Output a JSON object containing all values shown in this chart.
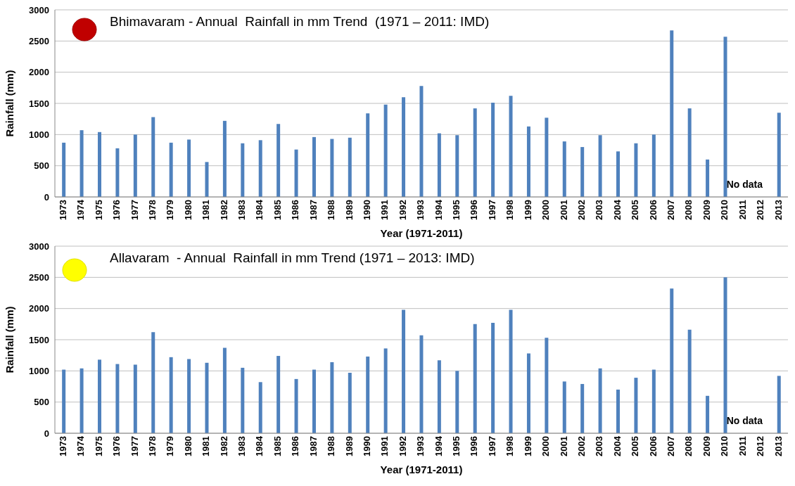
{
  "chart_data": [
    {
      "type": "bar",
      "title": "Bhimavaram - Annual  Rainfall in mm Trend  (1971 – 2011: IMD)",
      "xlabel": "Year (1971-2011)",
      "ylabel": "Rainfall (mm)",
      "categories": [
        "1973",
        "1974",
        "1975",
        "1976",
        "1977",
        "1978",
        "1979",
        "1980",
        "1981",
        "1982",
        "1983",
        "1984",
        "1985",
        "1986",
        "1987",
        "1988",
        "1989",
        "1990",
        "1991",
        "1992",
        "1993",
        "1994",
        "1995",
        "1996",
        "1997",
        "1998",
        "1999",
        "2000",
        "2001",
        "2002",
        "2003",
        "2004",
        "2005",
        "2006",
        "2007",
        "2008",
        "2009",
        "2010",
        "2011",
        "2012",
        "2013"
      ],
      "values": [
        870,
        1070,
        1040,
        780,
        1000,
        1280,
        870,
        920,
        560,
        1220,
        860,
        910,
        1170,
        760,
        960,
        930,
        950,
        1340,
        1480,
        1600,
        1780,
        1020,
        990,
        1420,
        1510,
        1620,
        1130,
        1270,
        890,
        800,
        990,
        730,
        860,
        1000,
        2670,
        1420,
        600,
        2570,
        null,
        null,
        1350
      ],
      "color": "#4f81bd",
      "ylim": [
        0,
        3000
      ],
      "yticks": [
        0,
        500,
        1000,
        1500,
        2000,
        2500,
        3000
      ],
      "grid": "y",
      "annotations": [
        "No data"
      ]
    },
    {
      "type": "bar",
      "title": "Allavaram  - Annual  Rainfall in mm Trend (1971 – 2013: IMD)",
      "xlabel": "Year (1971-2011)",
      "ylabel": "Rainfall (mm)",
      "categories": [
        "1973",
        "1974",
        "1975",
        "1976",
        "1977",
        "1978",
        "1979",
        "1980",
        "1981",
        "1982",
        "1983",
        "1984",
        "1985",
        "1986",
        "1987",
        "1988",
        "1989",
        "1990",
        "1991",
        "1992",
        "1993",
        "1994",
        "1995",
        "1996",
        "1997",
        "1998",
        "1999",
        "2000",
        "2001",
        "2002",
        "2003",
        "2004",
        "2005",
        "2006",
        "2007",
        "2008",
        "2009",
        "2010",
        "2011",
        "2012",
        "2013"
      ],
      "values": [
        1020,
        1040,
        1180,
        1110,
        1100,
        1620,
        1220,
        1190,
        1130,
        1370,
        1050,
        820,
        1240,
        870,
        1020,
        1140,
        970,
        1230,
        1360,
        1980,
        1570,
        1170,
        1000,
        1750,
        1770,
        1980,
        1280,
        1530,
        830,
        790,
        1040,
        700,
        890,
        1020,
        2320,
        1660,
        600,
        2500,
        null,
        null,
        920
      ],
      "color": "#4f81bd",
      "ylim": [
        0,
        3000
      ],
      "yticks": [
        0,
        500,
        1000,
        1500,
        2000,
        2500,
        3000
      ],
      "grid": "y",
      "annotations": [
        "No data"
      ]
    }
  ]
}
